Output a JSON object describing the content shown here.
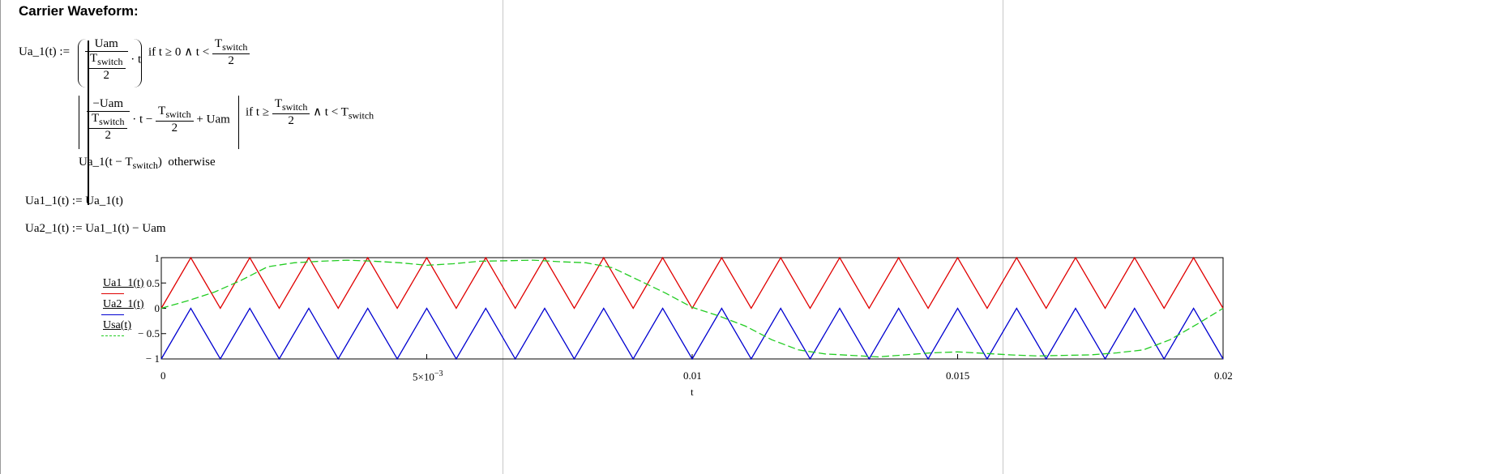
{
  "heading": "Carrier Waveform:",
  "definition": {
    "lhs": "Ua_1(t) :=",
    "case1": {
      "num": "Uam",
      "den_T": "T",
      "den_sub": "switch",
      "den_2": "2",
      "mult_t": "· t",
      "cond_pre": "if  t ≥ 0 ∧ t <",
      "cond_T": "T",
      "cond_sub": "switch",
      "cond_2": "2"
    },
    "case2": {
      "num": "−Uam",
      "den_T": "T",
      "den_sub": "switch",
      "den_2": "2",
      "paren_open": "·  t −",
      "inner_T": "T",
      "inner_sub": "switch",
      "inner_2": "2",
      "plus": "+ Uam",
      "cond_pre": "if  t ≥",
      "cond_T": "T",
      "cond_sub": "switch",
      "cond_2": "2",
      "cond_post": "∧ t < T",
      "cond_post_sub": "switch"
    },
    "case3": {
      "call": "Ua_1(t − T",
      "call_sub": "switch",
      "call_end": ")",
      "otherwise": "otherwise"
    }
  },
  "eq2": "Ua1_1(t) := Ua_1(t)",
  "eq3": "Ua2_1(t) := Ua1_1(t) − Uam",
  "chart_data": {
    "type": "line",
    "xlabel": "t",
    "xlim": [
      0,
      0.02
    ],
    "ylim": [
      -1,
      1
    ],
    "x_ticks": [
      0,
      0.005,
      0.01,
      0.015,
      0.02
    ],
    "x_tick_labels": [
      "0",
      "5×10",
      "0.01",
      "0.015",
      "0.02"
    ],
    "x_tick_exp": "−3",
    "y_ticks": [
      1,
      0.5,
      0,
      -0.5,
      -1
    ],
    "y_tick_labels": [
      "1",
      "0.5",
      "0",
      "− 0.5",
      "− 1"
    ],
    "carrier_period": 0.0011111,
    "series": [
      {
        "name": "Ua1_1(t)",
        "color": "#e00000",
        "style": "solid",
        "x": [
          0,
          0.000556,
          0.001111,
          0.001667,
          0.002222,
          0.002778,
          0.003333,
          0.003889,
          0.004444,
          0.005,
          0.005556,
          0.006111,
          0.006667,
          0.007222,
          0.007778,
          0.008333,
          0.008889,
          0.009444,
          0.01,
          0.010556,
          0.011111,
          0.011667,
          0.012222,
          0.012778,
          0.013333,
          0.013889,
          0.014444,
          0.015,
          0.015556,
          0.016111,
          0.016667,
          0.017222,
          0.017778,
          0.018333,
          0.018889,
          0.019444,
          0.02
        ],
        "values": [
          0,
          1,
          0,
          1,
          0,
          1,
          0,
          1,
          0,
          1,
          0,
          1,
          0,
          1,
          0,
          1,
          0,
          1,
          0,
          1,
          0,
          1,
          0,
          1,
          0,
          1,
          0,
          1,
          0,
          1,
          0,
          1,
          0,
          1,
          0,
          1,
          0
        ]
      },
      {
        "name": "Ua2_1(t)",
        "color": "#0000d0",
        "style": "solid",
        "x": [
          0,
          0.000556,
          0.001111,
          0.001667,
          0.002222,
          0.002778,
          0.003333,
          0.003889,
          0.004444,
          0.005,
          0.005556,
          0.006111,
          0.006667,
          0.007222,
          0.007778,
          0.008333,
          0.008889,
          0.009444,
          0.01,
          0.010556,
          0.011111,
          0.011667,
          0.012222,
          0.012778,
          0.013333,
          0.013889,
          0.014444,
          0.015,
          0.015556,
          0.016111,
          0.016667,
          0.017222,
          0.017778,
          0.018333,
          0.018889,
          0.019444,
          0.02
        ],
        "values": [
          -1,
          0,
          -1,
          0,
          -1,
          0,
          -1,
          0,
          -1,
          0,
          -1,
          0,
          -1,
          0,
          -1,
          0,
          -1,
          0,
          -1,
          0,
          -1,
          0,
          -1,
          0,
          -1,
          0,
          -1,
          0,
          -1,
          0,
          -1,
          0,
          -1,
          0,
          -1,
          0,
          -1
        ]
      },
      {
        "name": "Usa(t)",
        "color": "#22cc22",
        "style": "dashed",
        "x": [
          0,
          0.0005,
          0.001,
          0.0015,
          0.002,
          0.0025,
          0.003,
          0.0035,
          0.004,
          0.0045,
          0.005,
          0.0055,
          0.006,
          0.0065,
          0.007,
          0.0075,
          0.008,
          0.0085,
          0.009,
          0.0095,
          0.01,
          0.0105,
          0.011,
          0.0115,
          0.012,
          0.0125,
          0.013,
          0.0135,
          0.014,
          0.0145,
          0.015,
          0.0155,
          0.016,
          0.0165,
          0.017,
          0.0175,
          0.018,
          0.0185,
          0.019,
          0.0195,
          0.02
        ],
        "values": [
          0,
          0.15,
          0.32,
          0.55,
          0.82,
          0.9,
          0.93,
          0.95,
          0.93,
          0.9,
          0.85,
          0.88,
          0.93,
          0.94,
          0.95,
          0.92,
          0.9,
          0.8,
          0.55,
          0.3,
          0.02,
          -0.15,
          -0.35,
          -0.62,
          -0.82,
          -0.9,
          -0.93,
          -0.96,
          -0.92,
          -0.88,
          -0.86,
          -0.89,
          -0.92,
          -0.94,
          -0.93,
          -0.92,
          -0.88,
          -0.82,
          -0.62,
          -0.32,
          0
        ]
      }
    ]
  }
}
